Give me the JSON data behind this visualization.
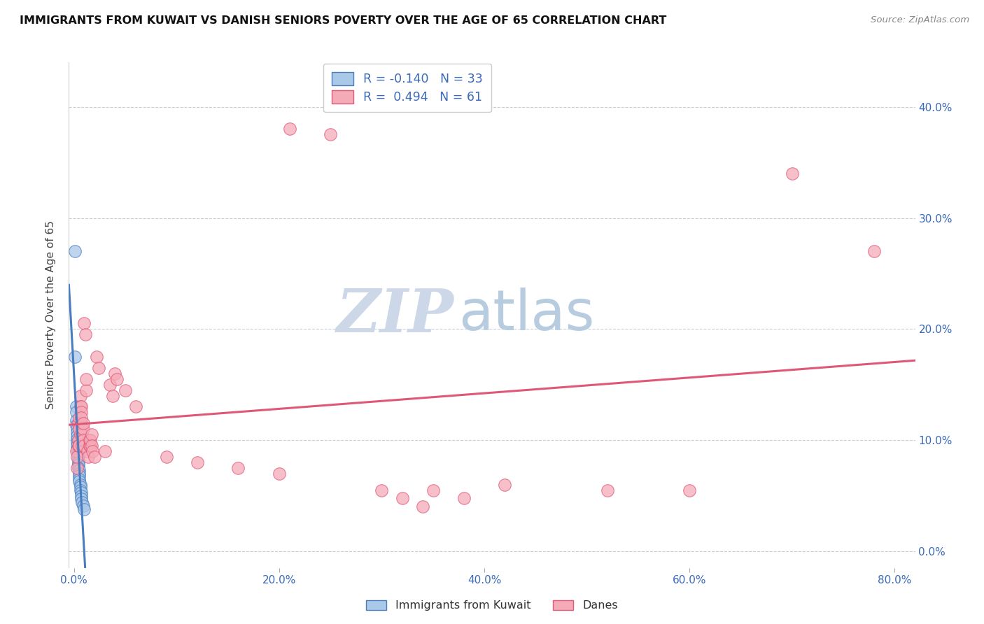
{
  "title": "IMMIGRANTS FROM KUWAIT VS DANISH SENIORS POVERTY OVER THE AGE OF 65 CORRELATION CHART",
  "source": "Source: ZipAtlas.com",
  "ylabel": "Seniors Poverty Over the Age of 65",
  "xlabel_ticks": [
    "0.0%",
    "20.0%",
    "40.0%",
    "60.0%",
    "80.0%"
  ],
  "xlabel_vals": [
    0.0,
    0.2,
    0.4,
    0.6,
    0.8
  ],
  "ylabel_ticks_right": [
    "0.0%",
    "10.0%",
    "20.0%",
    "30.0%",
    "40.0%"
  ],
  "ylabel_vals": [
    0.0,
    0.1,
    0.2,
    0.3,
    0.4
  ],
  "xlim": [
    -0.005,
    0.82
  ],
  "ylim": [
    -0.015,
    0.44
  ],
  "legend_label1": "Immigrants from Kuwait",
  "legend_label2": "Danes",
  "R1": "-0.140",
  "N1": "33",
  "R2": "0.494",
  "N2": "61",
  "color_blue": "#aac8e8",
  "color_pink": "#f5aab8",
  "line_blue": "#4a7cc0",
  "line_pink": "#e05878",
  "watermark_ZIP_color": "#ccd8e8",
  "watermark_atlas_color": "#b8cce0",
  "blue_points": [
    [
      0.001,
      0.27
    ],
    [
      0.001,
      0.175
    ],
    [
      0.002,
      0.13
    ],
    [
      0.002,
      0.125
    ],
    [
      0.002,
      0.118
    ],
    [
      0.002,
      0.113
    ],
    [
      0.003,
      0.11
    ],
    [
      0.003,
      0.107
    ],
    [
      0.003,
      0.104
    ],
    [
      0.003,
      0.101
    ],
    [
      0.003,
      0.098
    ],
    [
      0.003,
      0.095
    ],
    [
      0.003,
      0.092
    ],
    [
      0.004,
      0.089
    ],
    [
      0.004,
      0.086
    ],
    [
      0.004,
      0.083
    ],
    [
      0.004,
      0.08
    ],
    [
      0.004,
      0.078
    ],
    [
      0.004,
      0.075
    ],
    [
      0.005,
      0.073
    ],
    [
      0.005,
      0.07
    ],
    [
      0.005,
      0.068
    ],
    [
      0.005,
      0.065
    ],
    [
      0.005,
      0.063
    ],
    [
      0.006,
      0.06
    ],
    [
      0.006,
      0.058
    ],
    [
      0.006,
      0.055
    ],
    [
      0.007,
      0.053
    ],
    [
      0.007,
      0.05
    ],
    [
      0.007,
      0.047
    ],
    [
      0.008,
      0.044
    ],
    [
      0.009,
      0.041
    ],
    [
      0.01,
      0.038
    ]
  ],
  "pink_points": [
    [
      0.002,
      0.09
    ],
    [
      0.003,
      0.075
    ],
    [
      0.003,
      0.085
    ],
    [
      0.004,
      0.1
    ],
    [
      0.004,
      0.095
    ],
    [
      0.004,
      0.115
    ],
    [
      0.005,
      0.095
    ],
    [
      0.005,
      0.12
    ],
    [
      0.005,
      0.11
    ],
    [
      0.006,
      0.14
    ],
    [
      0.006,
      0.13
    ],
    [
      0.006,
      0.105
    ],
    [
      0.007,
      0.13
    ],
    [
      0.007,
      0.115
    ],
    [
      0.007,
      0.125
    ],
    [
      0.007,
      0.12
    ],
    [
      0.008,
      0.095
    ],
    [
      0.008,
      0.105
    ],
    [
      0.009,
      0.11
    ],
    [
      0.009,
      0.115
    ],
    [
      0.009,
      0.1
    ],
    [
      0.01,
      0.095
    ],
    [
      0.01,
      0.205
    ],
    [
      0.011,
      0.195
    ],
    [
      0.012,
      0.145
    ],
    [
      0.012,
      0.155
    ],
    [
      0.013,
      0.09
    ],
    [
      0.014,
      0.085
    ],
    [
      0.015,
      0.095
    ],
    [
      0.015,
      0.1
    ],
    [
      0.016,
      0.095
    ],
    [
      0.016,
      0.1
    ],
    [
      0.017,
      0.105
    ],
    [
      0.017,
      0.095
    ],
    [
      0.018,
      0.09
    ],
    [
      0.02,
      0.085
    ],
    [
      0.022,
      0.175
    ],
    [
      0.024,
      0.165
    ],
    [
      0.03,
      0.09
    ],
    [
      0.035,
      0.15
    ],
    [
      0.038,
      0.14
    ],
    [
      0.04,
      0.16
    ],
    [
      0.042,
      0.155
    ],
    [
      0.05,
      0.145
    ],
    [
      0.06,
      0.13
    ],
    [
      0.09,
      0.085
    ],
    [
      0.12,
      0.08
    ],
    [
      0.16,
      0.075
    ],
    [
      0.2,
      0.07
    ],
    [
      0.21,
      0.38
    ],
    [
      0.25,
      0.375
    ],
    [
      0.3,
      0.055
    ],
    [
      0.32,
      0.048
    ],
    [
      0.34,
      0.04
    ],
    [
      0.35,
      0.055
    ],
    [
      0.38,
      0.048
    ],
    [
      0.42,
      0.06
    ],
    [
      0.52,
      0.055
    ],
    [
      0.6,
      0.055
    ],
    [
      0.7,
      0.34
    ],
    [
      0.78,
      0.27
    ]
  ]
}
